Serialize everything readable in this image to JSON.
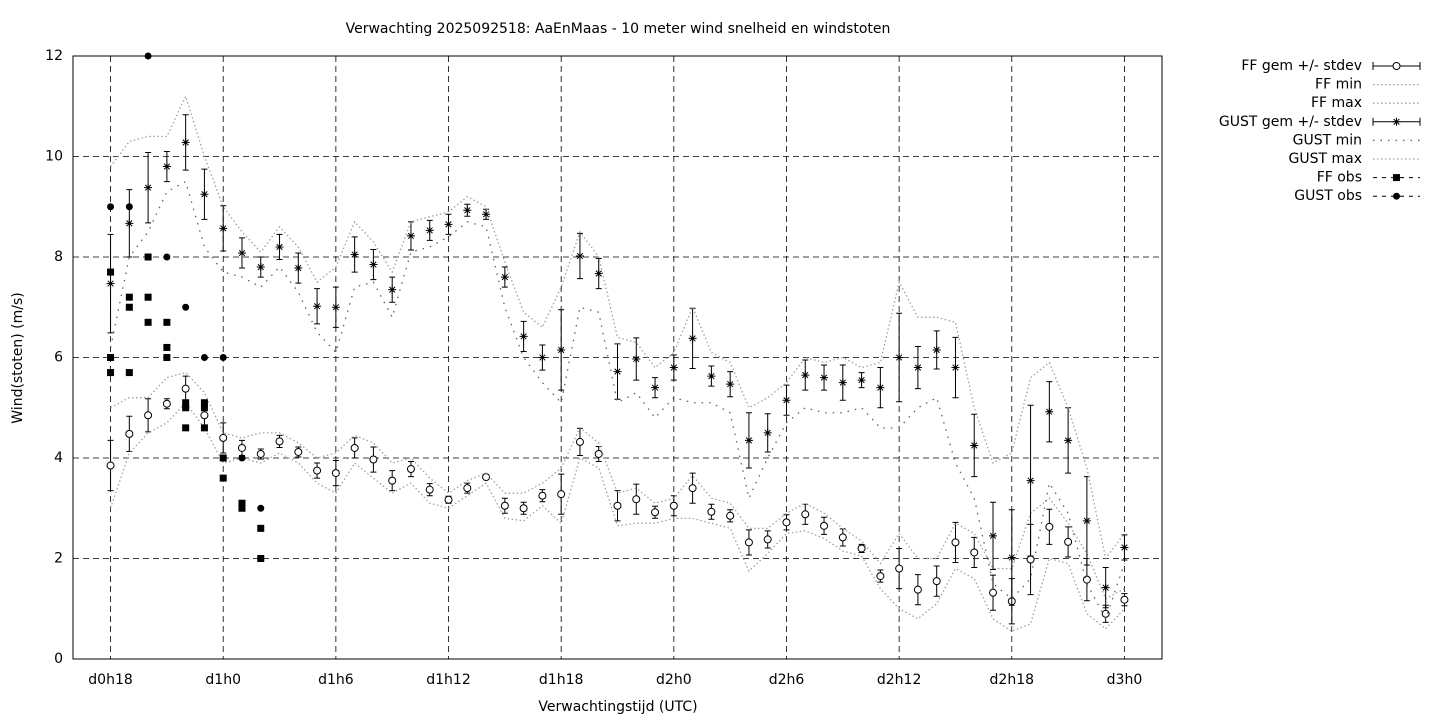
{
  "chart_data": {
    "type": "errorbar",
    "title": "Verwachting 2025092518: AaEnMaas - 10 meter wind snelheid en windstoten",
    "x_label": "Verwachtingstijd (UTC)",
    "y_label": "Wind(stoten) (m/s)",
    "x": [
      18,
      19,
      20,
      21,
      22,
      23,
      24,
      25,
      26,
      27,
      28,
      29,
      30,
      31,
      32,
      33,
      34,
      35,
      36,
      37,
      38,
      39,
      40,
      41,
      42,
      43,
      44,
      45,
      46,
      47,
      48,
      49,
      50,
      51,
      52,
      53,
      54,
      55,
      56,
      57,
      58,
      59,
      60,
      61,
      62,
      63,
      64,
      65,
      66,
      67,
      68,
      69,
      70,
      71,
      72
    ],
    "xlim": [
      16,
      74
    ],
    "xticks": [
      {
        "value": 18,
        "label": "d0h18"
      },
      {
        "value": 24,
        "label": "d1h0"
      },
      {
        "value": 30,
        "label": "d1h6"
      },
      {
        "value": 36,
        "label": "d1h12"
      },
      {
        "value": 42,
        "label": "d1h18"
      },
      {
        "value": 48,
        "label": "d2h0"
      },
      {
        "value": 54,
        "label": "d2h6"
      },
      {
        "value": 60,
        "label": "d2h12"
      },
      {
        "value": 66,
        "label": "d2h18"
      },
      {
        "value": 72,
        "label": "d3h0"
      }
    ],
    "ylim": [
      0,
      12
    ],
    "yticks": [
      0,
      2,
      4,
      6,
      8,
      10,
      12
    ],
    "grid": true,
    "legend": "outside-right",
    "series": [
      {
        "name": "FF gem +/- stdev",
        "style": "errorbar",
        "marker": "circle",
        "color": "#000000",
        "values": [
          3.85,
          4.48,
          4.85,
          5.08,
          5.38,
          4.85,
          4.4,
          4.2,
          4.08,
          4.33,
          4.12,
          3.75,
          3.7,
          4.2,
          3.97,
          3.55,
          3.78,
          3.37,
          3.17,
          3.4,
          3.62,
          3.05,
          3.0,
          3.25,
          3.28,
          4.32,
          4.08,
          3.05,
          3.18,
          2.92,
          3.05,
          3.4,
          2.93,
          2.85,
          2.32,
          2.38,
          2.72,
          2.88,
          2.65,
          2.42,
          2.2,
          1.65,
          1.8,
          1.38,
          1.55,
          2.32,
          2.12,
          1.32,
          1.15,
          1.98,
          2.63,
          2.33,
          1.58,
          0.9,
          1.18
        ],
        "errors": [
          0.5,
          0.35,
          0.33,
          0.1,
          0.25,
          0.2,
          0.3,
          0.15,
          0.1,
          0.12,
          0.1,
          0.15,
          0.25,
          0.2,
          0.25,
          0.2,
          0.15,
          0.12,
          0.07,
          0.1,
          0.05,
          0.15,
          0.12,
          0.12,
          0.4,
          0.27,
          0.15,
          0.3,
          0.3,
          0.12,
          0.2,
          0.3,
          0.15,
          0.12,
          0.25,
          0.17,
          0.15,
          0.2,
          0.17,
          0.17,
          0.08,
          0.12,
          0.4,
          0.3,
          0.3,
          0.4,
          0.3,
          0.35,
          0.45,
          0.7,
          0.35,
          0.3,
          0.42,
          0.17,
          0.12
        ]
      },
      {
        "name": "FF min",
        "style": "dotted",
        "color": "#a0a0a0",
        "values": [
          3.0,
          4.1,
          4.5,
          4.7,
          5.1,
          4.6,
          3.9,
          4.0,
          3.9,
          4.1,
          3.9,
          3.5,
          3.3,
          3.9,
          3.6,
          3.3,
          3.5,
          3.1,
          3.0,
          3.25,
          3.5,
          2.8,
          2.75,
          3.05,
          2.7,
          4.0,
          3.8,
          2.65,
          2.7,
          2.7,
          2.8,
          2.8,
          2.7,
          2.6,
          1.75,
          2.1,
          2.5,
          2.55,
          2.4,
          2.15,
          2.05,
          1.4,
          1.0,
          0.8,
          1.1,
          1.8,
          1.6,
          0.8,
          0.55,
          0.7,
          2.0,
          1.9,
          0.9,
          0.6,
          1.0
        ]
      },
      {
        "name": "FF max",
        "style": "dotted",
        "color": "#a0a0a0",
        "values": [
          5.0,
          5.2,
          5.2,
          5.6,
          5.7,
          5.3,
          4.5,
          4.4,
          4.5,
          4.5,
          4.3,
          4.0,
          4.1,
          4.45,
          4.3,
          3.9,
          4.0,
          3.6,
          3.3,
          3.55,
          3.7,
          3.3,
          3.3,
          3.5,
          3.8,
          4.6,
          4.3,
          3.3,
          3.4,
          3.1,
          3.2,
          3.65,
          3.2,
          3.1,
          2.6,
          2.6,
          2.9,
          3.1,
          2.9,
          2.6,
          2.35,
          1.9,
          2.5,
          2.0,
          2.0,
          2.7,
          2.5,
          1.8,
          1.8,
          2.9,
          3.2,
          2.7,
          2.1,
          1.2,
          1.4
        ]
      },
      {
        "name": "GUST gem +/- stdev",
        "style": "errorbar",
        "marker": "star",
        "color": "#000000",
        "values": [
          7.47,
          8.67,
          9.38,
          9.8,
          10.28,
          9.25,
          8.57,
          8.08,
          7.8,
          8.2,
          7.78,
          7.02,
          7.0,
          8.05,
          7.85,
          7.35,
          8.42,
          8.53,
          8.65,
          8.93,
          8.85,
          7.6,
          6.42,
          6.0,
          6.15,
          8.02,
          7.67,
          5.72,
          5.97,
          5.4,
          5.8,
          6.38,
          5.63,
          5.47,
          4.35,
          4.5,
          5.15,
          5.65,
          5.6,
          5.5,
          5.55,
          5.4,
          6.0,
          5.8,
          6.15,
          5.8,
          4.25,
          2.45,
          2.02,
          3.55,
          4.92,
          4.35,
          2.75,
          1.42,
          2.22
        ],
        "errors": [
          0.98,
          0.67,
          0.7,
          0.3,
          0.55,
          0.5,
          0.45,
          0.3,
          0.2,
          0.25,
          0.3,
          0.35,
          0.4,
          0.35,
          0.3,
          0.25,
          0.28,
          0.2,
          0.2,
          0.12,
          0.1,
          0.2,
          0.3,
          0.25,
          0.8,
          0.45,
          0.3,
          0.55,
          0.42,
          0.2,
          0.25,
          0.6,
          0.2,
          0.25,
          0.55,
          0.38,
          0.3,
          0.3,
          0.25,
          0.35,
          0.15,
          0.4,
          0.88,
          0.42,
          0.38,
          0.6,
          0.62,
          0.67,
          0.95,
          1.5,
          0.6,
          0.65,
          0.88,
          0.4,
          0.25
        ]
      },
      {
        "name": "GUST min",
        "style": "sparse",
        "color": "#606060",
        "values": [
          6.2,
          8.0,
          8.5,
          9.3,
          9.5,
          8.2,
          7.7,
          7.6,
          7.4,
          7.8,
          7.3,
          6.5,
          6.1,
          7.4,
          7.5,
          6.8,
          8.1,
          8.2,
          8.4,
          8.7,
          8.6,
          7.0,
          6.0,
          5.5,
          5.1,
          7.0,
          6.9,
          5.1,
          5.3,
          4.8,
          5.2,
          5.1,
          5.1,
          4.9,
          3.2,
          4.0,
          4.7,
          5.0,
          4.9,
          4.9,
          5.0,
          4.6,
          4.6,
          5.0,
          5.2,
          3.9,
          3.2,
          1.5,
          1.2,
          1.6,
          3.5,
          2.9,
          1.5,
          0.8,
          1.9
        ]
      },
      {
        "name": "GUST max",
        "style": "dotted",
        "color": "#a0a0a0",
        "values": [
          9.8,
          10.3,
          10.4,
          10.4,
          11.2,
          10.0,
          9.0,
          8.5,
          8.1,
          8.6,
          8.2,
          7.5,
          7.8,
          8.7,
          8.3,
          7.7,
          8.7,
          8.8,
          8.9,
          9.2,
          9.0,
          7.9,
          6.9,
          6.6,
          7.4,
          8.5,
          8.0,
          6.4,
          6.3,
          5.8,
          6.1,
          7.0,
          6.1,
          5.9,
          5.0,
          5.2,
          5.5,
          6.0,
          5.9,
          6.0,
          5.8,
          5.9,
          7.5,
          6.8,
          6.8,
          6.7,
          5.0,
          3.9,
          4.1,
          5.6,
          5.9,
          5.0,
          3.8,
          2.0,
          2.5
        ]
      },
      {
        "name": "FF obs",
        "style": "points",
        "marker": "square",
        "color": "#000000",
        "x": [
          18,
          18,
          18,
          19,
          19,
          19,
          20,
          20,
          20,
          21,
          21,
          21,
          22,
          22,
          22,
          23,
          23,
          23,
          24,
          24,
          25,
          25,
          26,
          26
        ],
        "values": [
          7.7,
          6.0,
          5.7,
          7.2,
          7.0,
          5.7,
          8.0,
          7.2,
          6.7,
          6.7,
          6.2,
          6.0,
          5.1,
          5.0,
          4.6,
          5.1,
          5.0,
          4.6,
          4.0,
          3.6,
          3.1,
          3.0,
          2.6,
          2.0
        ]
      },
      {
        "name": "GUST obs",
        "style": "points",
        "marker": "dot",
        "color": "#000000",
        "x": [
          18,
          19,
          20,
          21,
          22,
          23,
          24,
          25,
          26
        ],
        "values": [
          9.0,
          9.0,
          12.0,
          8.0,
          7.0,
          6.0,
          6.0,
          4.0,
          3.0
        ]
      }
    ]
  }
}
